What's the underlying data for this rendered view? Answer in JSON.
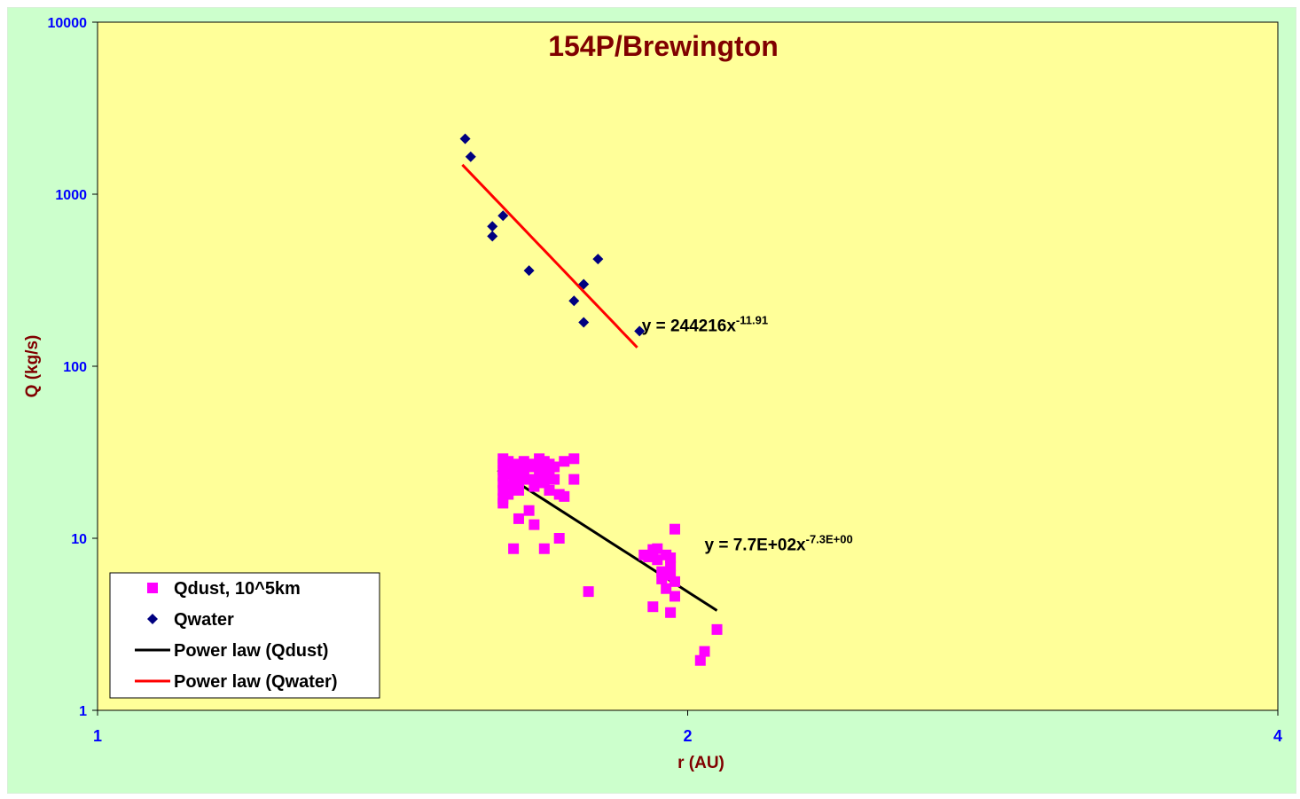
{
  "chart_data": {
    "type": "scatter",
    "title": "154P/Brewington",
    "xlabel": "r (AU)",
    "ylabel": "Q (kg/s)",
    "x_scale": "log",
    "y_scale": "log",
    "xlim": [
      1,
      4
    ],
    "ylim": [
      1,
      10000
    ],
    "x_ticks": [
      "1",
      "2",
      "4"
    ],
    "y_ticks": [
      "1",
      "10",
      "100",
      "1000",
      "10000"
    ],
    "grid": false,
    "legend_position": "bottom-left",
    "plot_background": "#ffff99",
    "chart_background": "#ccffcc",
    "series": [
      {
        "name": "Qdust, 10^5km",
        "marker": "square",
        "color": "#ff00ff",
        "points": [
          [
            1.61,
            29
          ],
          [
            1.61,
            27
          ],
          [
            1.61,
            25
          ],
          [
            1.61,
            23
          ],
          [
            1.61,
            21
          ],
          [
            1.61,
            19
          ],
          [
            1.61,
            17
          ],
          [
            1.61,
            16
          ],
          [
            1.62,
            28
          ],
          [
            1.62,
            24
          ],
          [
            1.62,
            20
          ],
          [
            1.62,
            18
          ],
          [
            1.63,
            26
          ],
          [
            1.63,
            22
          ],
          [
            1.64,
            27
          ],
          [
            1.64,
            24
          ],
          [
            1.64,
            21
          ],
          [
            1.64,
            19
          ],
          [
            1.65,
            28
          ],
          [
            1.65,
            25
          ],
          [
            1.65,
            23
          ],
          [
            1.66,
            27
          ],
          [
            1.66,
            22
          ],
          [
            1.67,
            26
          ],
          [
            1.67,
            20
          ],
          [
            1.68,
            29
          ],
          [
            1.68,
            25
          ],
          [
            1.68,
            22
          ],
          [
            1.69,
            28
          ],
          [
            1.69,
            24
          ],
          [
            1.69,
            21
          ],
          [
            1.7,
            27
          ],
          [
            1.7,
            23
          ],
          [
            1.7,
            19
          ],
          [
            1.71,
            26
          ],
          [
            1.71,
            22
          ],
          [
            1.72,
            18
          ],
          [
            1.73,
            28
          ],
          [
            1.73,
            17.5
          ],
          [
            1.75,
            29
          ],
          [
            1.75,
            22
          ],
          [
            1.63,
            8.7
          ],
          [
            1.64,
            13
          ],
          [
            1.66,
            14.5
          ],
          [
            1.67,
            12
          ],
          [
            1.69,
            8.7
          ],
          [
            1.72,
            10
          ],
          [
            1.78,
            4.9
          ],
          [
            1.9,
            8
          ],
          [
            1.91,
            7.8
          ],
          [
            1.92,
            8.6
          ],
          [
            1.93,
            8.7
          ],
          [
            1.93,
            7.5
          ],
          [
            1.94,
            5.8
          ],
          [
            1.94,
            6.4
          ],
          [
            1.95,
            8
          ],
          [
            1.95,
            5.1
          ],
          [
            1.96,
            7.7
          ],
          [
            1.96,
            6.9
          ],
          [
            1.96,
            6.1
          ],
          [
            1.97,
            5.6
          ],
          [
            1.97,
            4.6
          ],
          [
            1.97,
            11.3
          ],
          [
            1.92,
            4
          ],
          [
            1.96,
            3.7
          ],
          [
            2.07,
            2.95
          ],
          [
            2.04,
            2.2
          ],
          [
            2.03,
            1.95
          ]
        ]
      },
      {
        "name": "Qwater",
        "marker": "diamond",
        "color": "#000080",
        "points": [
          [
            1.54,
            2100
          ],
          [
            1.55,
            1650
          ],
          [
            1.59,
            650
          ],
          [
            1.59,
            570
          ],
          [
            1.61,
            750
          ],
          [
            1.66,
            360
          ],
          [
            1.75,
            240
          ],
          [
            1.77,
            300
          ],
          [
            1.77,
            180
          ],
          [
            1.8,
            420
          ],
          [
            1.89,
            160
          ]
        ]
      }
    ],
    "trendlines": [
      {
        "name": "Power law (Qdust)",
        "color": "#000000",
        "coefficient": 770,
        "exponent": -7.3,
        "x_range": [
          1.6,
          2.07
        ],
        "equation_base": "y = 7.7E+02x",
        "equation_exponent": "-7.3E+00",
        "label_at": [
          2.04,
          8.5
        ]
      },
      {
        "name": "Power law (Qwater)",
        "color": "#ff0000",
        "coefficient": 244216,
        "exponent": -11.91,
        "x_range": [
          1.535,
          1.885
        ],
        "equation_base": "y = 244216x",
        "equation_exponent": "-11.91",
        "label_at": [
          1.895,
          160
        ]
      }
    ]
  }
}
